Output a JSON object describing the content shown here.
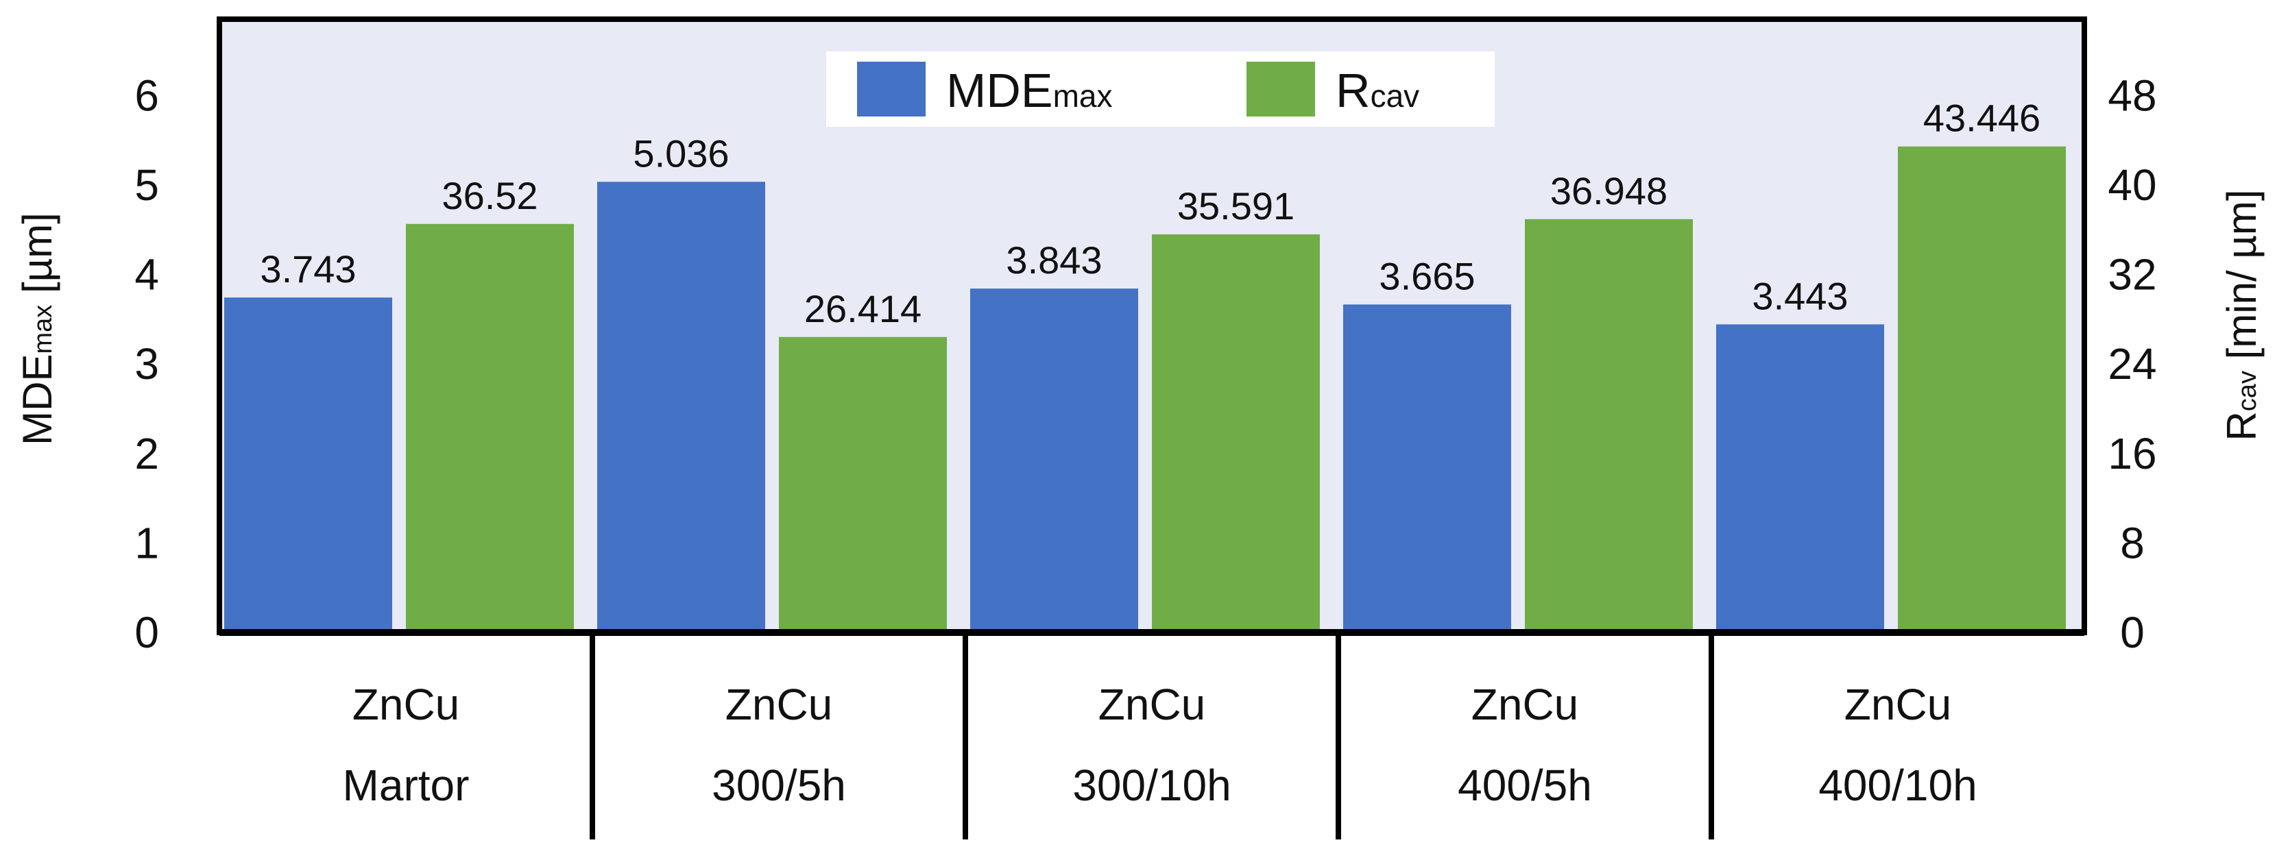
{
  "chart_data": {
    "type": "bar",
    "categories": [
      [
        "ZnCu",
        "Martor"
      ],
      [
        "ZnCu",
        "300/5h"
      ],
      [
        "ZnCu",
        "300/10h"
      ],
      [
        "ZnCu",
        "400/5h"
      ],
      [
        "ZnCu",
        "400/10h"
      ]
    ],
    "series": [
      {
        "name": "MDEmax",
        "name_main": "MDE",
        "name_sub": "max",
        "axis": "left",
        "color": "#4472C4",
        "values": [
          3.743,
          5.036,
          3.843,
          3.665,
          3.443
        ],
        "labels": [
          "3.743",
          "5.036",
          "3.843",
          "3.665",
          "3.443"
        ]
      },
      {
        "name": "Rcav",
        "name_main": "R",
        "name_sub": "cav",
        "axis": "right",
        "color": "#70AD47",
        "values": [
          36.52,
          26.414,
          35.591,
          36.948,
          43.446
        ],
        "labels": [
          "36.52",
          "26.414",
          "35.591",
          "36.948",
          "43.446"
        ]
      }
    ],
    "y_left": {
      "label_main": "MDE",
      "label_sub": "max",
      "label_unit": " [µm]",
      "range": [
        0,
        6
      ],
      "ticks": [
        "0",
        "1",
        "2",
        "3",
        "4",
        "5",
        "6"
      ]
    },
    "y_right": {
      "label_main": "R",
      "label_sub": "cav",
      "label_unit": " [min/ µm]",
      "range": [
        0,
        48
      ],
      "ticks": [
        "0",
        "8",
        "16",
        "24",
        "32",
        "40",
        "48"
      ]
    },
    "legend_position": "top-center",
    "plot_background": "#E8EAF6",
    "grid": false
  }
}
